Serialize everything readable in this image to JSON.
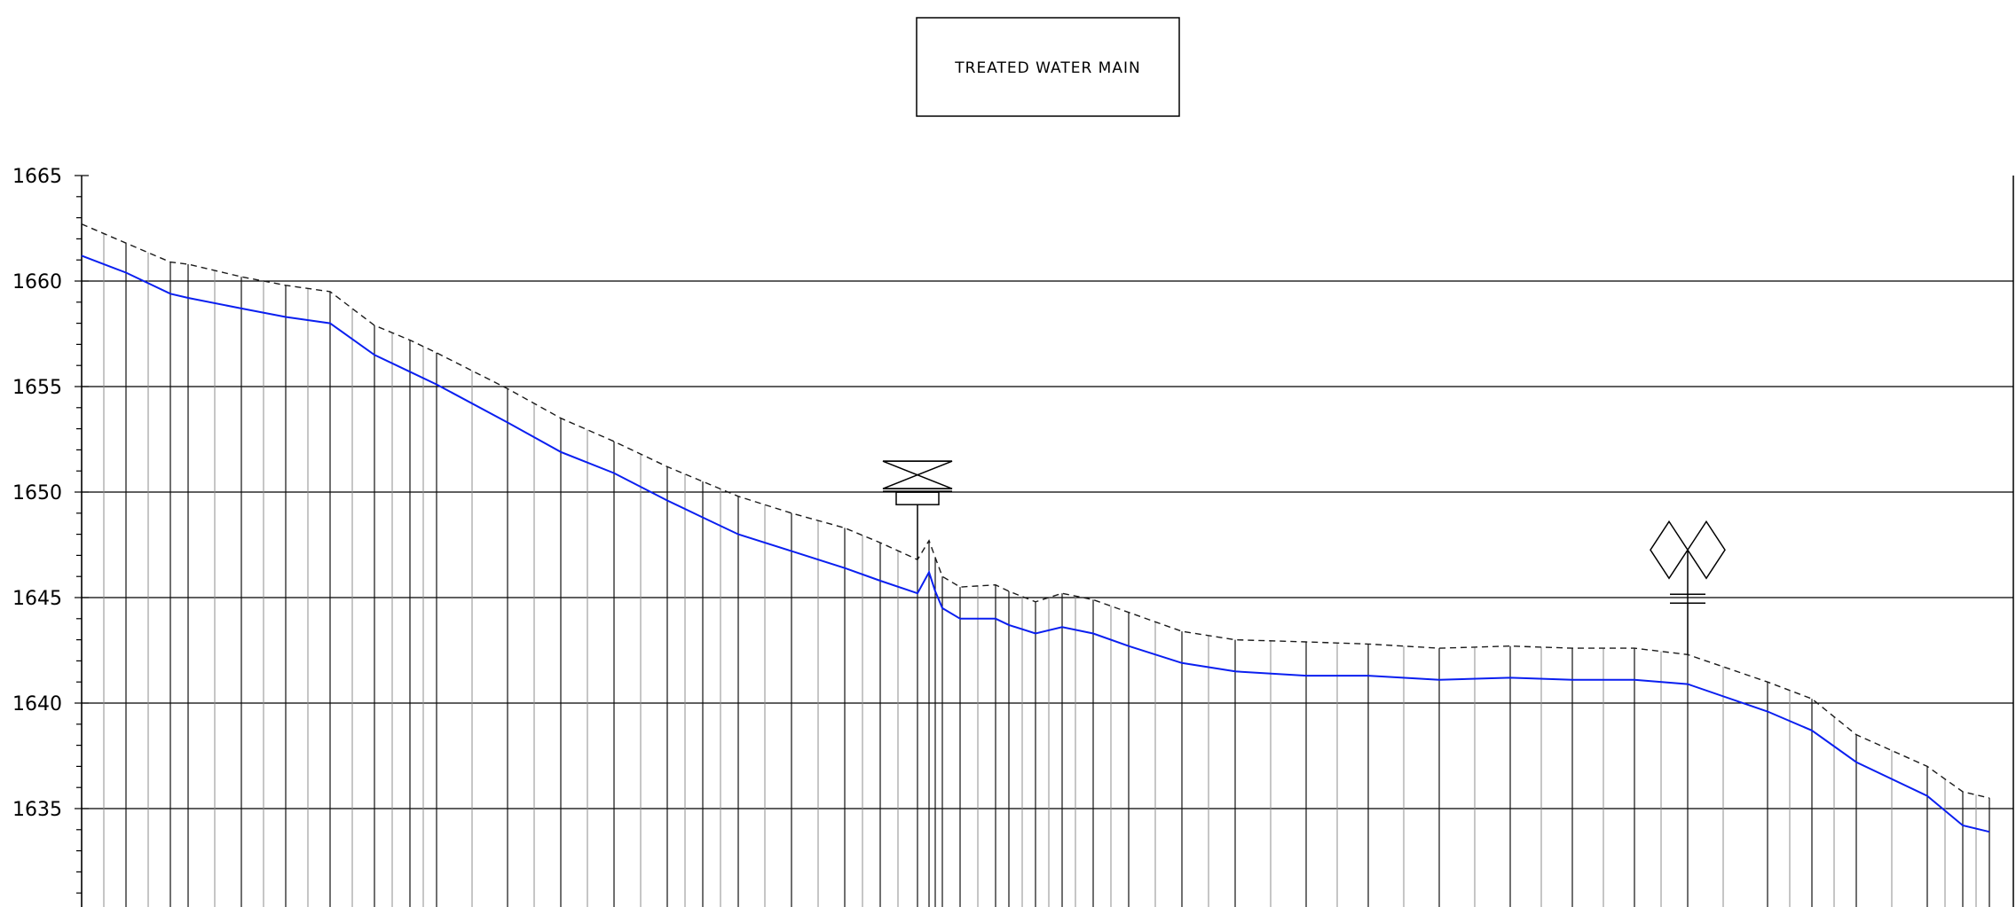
{
  "title": "TREATED WATER MAIN",
  "colors": {
    "pipe": "#0a1ff0",
    "ground": "#1a1a1a",
    "grid": "#000000",
    "station_major": "#111111",
    "station_minor": "#8c8c8c"
  },
  "icons": [
    "gate-valve-icon",
    "hydrant-icon"
  ],
  "chart_data": {
    "type": "line",
    "ylim": [
      1630,
      1665
    ],
    "yticks": [
      "1665",
      "1660",
      "1655",
      "1650",
      "1645",
      "1640",
      "1635"
    ],
    "grid": true,
    "series": [
      {
        "style": "dashed",
        "points": [
          [
            0,
            1662.7
          ],
          [
            50,
            1661.8
          ],
          [
            100,
            1660.9
          ],
          [
            120,
            1660.8
          ],
          [
            180,
            1660.2
          ],
          [
            230,
            1659.8
          ],
          [
            280,
            1659.5
          ],
          [
            330,
            1657.9
          ],
          [
            370,
            1657.2
          ],
          [
            400,
            1656.6
          ],
          [
            480,
            1654.9
          ],
          [
            540,
            1653.5
          ],
          [
            600,
            1652.4
          ],
          [
            660,
            1651.2
          ],
          [
            700,
            1650.5
          ],
          [
            740,
            1649.8
          ],
          [
            800,
            1649.0
          ],
          [
            860,
            1648.3
          ],
          [
            900,
            1647.6
          ],
          [
            942,
            1646.8
          ],
          [
            955,
            1647.7
          ],
          [
            962,
            1646.9
          ],
          [
            970,
            1646.0
          ],
          [
            990,
            1645.5
          ],
          [
            1030,
            1645.6
          ],
          [
            1045,
            1645.3
          ],
          [
            1075,
            1644.8
          ],
          [
            1105,
            1645.2
          ],
          [
            1140,
            1644.9
          ],
          [
            1180,
            1644.3
          ],
          [
            1240,
            1643.4
          ],
          [
            1300,
            1643.0
          ],
          [
            1380,
            1642.9
          ],
          [
            1450,
            1642.8
          ],
          [
            1530,
            1642.6
          ],
          [
            1610,
            1642.7
          ],
          [
            1680,
            1642.6
          ],
          [
            1750,
            1642.6
          ],
          [
            1810,
            1642.3
          ],
          [
            1900,
            1641.0
          ],
          [
            1950,
            1640.2
          ],
          [
            2000,
            1638.5
          ],
          [
            2080,
            1637.0
          ],
          [
            2120,
            1635.8
          ],
          [
            2150,
            1635.5
          ]
        ]
      },
      {
        "style": "solid",
        "points": [
          [
            0,
            1661.2
          ],
          [
            50,
            1660.4
          ],
          [
            100,
            1659.4
          ],
          [
            120,
            1659.2
          ],
          [
            180,
            1658.7
          ],
          [
            230,
            1658.3
          ],
          [
            280,
            1658.0
          ],
          [
            330,
            1656.5
          ],
          [
            370,
            1655.7
          ],
          [
            400,
            1655.1
          ],
          [
            480,
            1653.3
          ],
          [
            540,
            1651.9
          ],
          [
            600,
            1650.9
          ],
          [
            660,
            1649.6
          ],
          [
            700,
            1648.8
          ],
          [
            740,
            1648.0
          ],
          [
            800,
            1647.2
          ],
          [
            860,
            1646.4
          ],
          [
            900,
            1645.8
          ],
          [
            942,
            1645.2
          ],
          [
            955,
            1646.2
          ],
          [
            962,
            1645.3
          ],
          [
            970,
            1644.5
          ],
          [
            990,
            1644.0
          ],
          [
            1030,
            1644.0
          ],
          [
            1045,
            1643.7
          ],
          [
            1075,
            1643.3
          ],
          [
            1105,
            1643.6
          ],
          [
            1140,
            1643.3
          ],
          [
            1180,
            1642.7
          ],
          [
            1240,
            1641.9
          ],
          [
            1300,
            1641.5
          ],
          [
            1380,
            1641.3
          ],
          [
            1450,
            1641.3
          ],
          [
            1530,
            1641.1
          ],
          [
            1610,
            1641.2
          ],
          [
            1680,
            1641.1
          ],
          [
            1750,
            1641.1
          ],
          [
            1810,
            1640.9
          ],
          [
            1900,
            1639.6
          ],
          [
            1950,
            1638.7
          ],
          [
            2000,
            1637.2
          ],
          [
            2080,
            1635.6
          ],
          [
            2120,
            1634.2
          ],
          [
            2150,
            1633.9
          ]
        ]
      }
    ],
    "stations_major": [
      0,
      50,
      100,
      120,
      180,
      230,
      280,
      330,
      370,
      400,
      480,
      540,
      600,
      660,
      700,
      740,
      800,
      860,
      900,
      942,
      955,
      962,
      970,
      990,
      1030,
      1045,
      1075,
      1105,
      1140,
      1180,
      1240,
      1300,
      1380,
      1450,
      1530,
      1610,
      1680,
      1750,
      1810,
      1900,
      1950,
      2000,
      2080,
      2120,
      2150
    ],
    "stations_minor": [
      25,
      75,
      150,
      205,
      255,
      305,
      350,
      385,
      440,
      510,
      570,
      630,
      680,
      720,
      770,
      830,
      880,
      920,
      1010,
      1060,
      1090,
      1120,
      1160,
      1210,
      1270,
      1340,
      1415,
      1490,
      1570,
      1645,
      1715,
      1780,
      1850,
      1925,
      1975,
      2040,
      2100,
      2135
    ],
    "markers": [
      {
        "type": "gate-valve",
        "station": 942
      },
      {
        "type": "hydrant",
        "station": 1810
      }
    ]
  }
}
